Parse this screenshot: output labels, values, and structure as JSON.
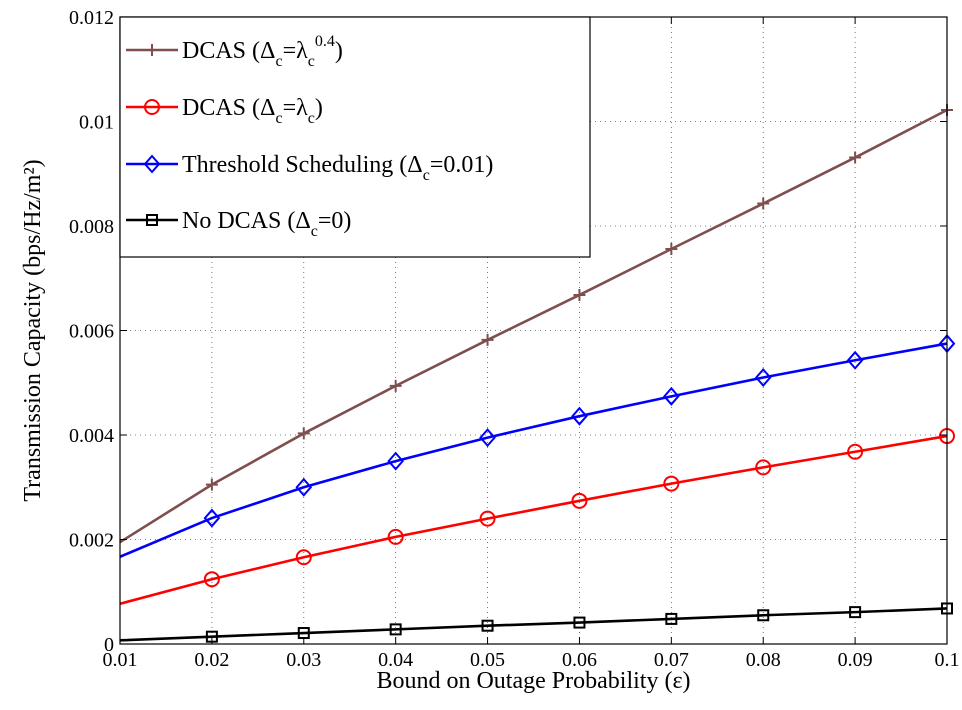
{
  "chart_data": {
    "type": "line",
    "title": "",
    "xlabel": "Bound on Outage Probability (ε)",
    "ylabel": "Transmission Capacity (bps/Hz/m²)",
    "xlim": [
      0.01,
      0.1
    ],
    "ylim": [
      0,
      0.012
    ],
    "x_ticks": [
      "0.01",
      "0.02",
      "0.03",
      "0.04",
      "0.05",
      "0.06",
      "0.07",
      "0.08",
      "0.09",
      "0.1"
    ],
    "y_ticks": [
      "0",
      "0.002",
      "0.004",
      "0.006",
      "0.008",
      "0.01",
      "0.012"
    ],
    "grid": true,
    "legend_position": "top-left",
    "x": [
      0.01,
      0.02,
      0.03,
      0.04,
      0.05,
      0.06,
      0.07,
      0.08,
      0.09,
      0.1
    ],
    "series": [
      {
        "name": "DCAS (Δc=λc^0.4)",
        "legend": {
          "main": "DCAS (Δ",
          "sub1": "c",
          "mid": "=λ",
          "sub2": "c",
          "sup": "0.4",
          "end": ")"
        },
        "color": "#7f4f4f",
        "marker": "plus",
        "values": [
          0.00195,
          0.00305,
          0.00403,
          0.00494,
          0.00582,
          0.00668,
          0.00756,
          0.00843,
          0.00931,
          0.01022
        ]
      },
      {
        "name": "DCAS (Δc=λc)",
        "legend": {
          "main": "DCAS (Δ",
          "sub1": "c",
          "mid": "=λ",
          "sub2": "c",
          "sup": "",
          "end": ")"
        },
        "color": "#ff0000",
        "marker": "circle",
        "values": [
          0.00077,
          0.00124,
          0.00166,
          0.00205,
          0.0024,
          0.00274,
          0.00307,
          0.00338,
          0.00368,
          0.00398
        ]
      },
      {
        "name": "Threshold Scheduling (Δc=0.01)",
        "legend": {
          "main": "Threshold Scheduling (Δ",
          "sub1": "c",
          "mid": "=0.01)",
          "sub2": "",
          "sup": "",
          "end": ""
        },
        "color": "#0000ff",
        "marker": "diamond",
        "values": [
          0.00167,
          0.00241,
          0.003,
          0.0035,
          0.00395,
          0.00436,
          0.00474,
          0.0051,
          0.00543,
          0.00575
        ]
      },
      {
        "name": "No DCAS (Δc=0)",
        "legend": {
          "main": "No DCAS (Δ",
          "sub1": "c",
          "mid": "=0)",
          "sub2": "",
          "sup": "",
          "end": ""
        },
        "color": "#000000",
        "marker": "square",
        "values": [
          7e-05,
          0.00014,
          0.00021,
          0.00028,
          0.00035,
          0.00041,
          0.00048,
          0.00055,
          0.00061,
          0.00068
        ]
      }
    ]
  }
}
